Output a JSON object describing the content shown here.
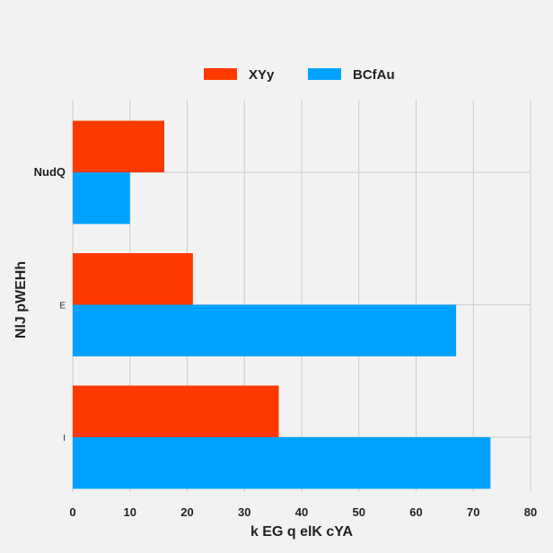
{
  "chart_data": {
    "type": "bar",
    "orientation": "horizontal",
    "title": "",
    "xlabel": "k EG q elK cYA",
    "ylabel": "NlJ pWEHh",
    "xlim": [
      0,
      80
    ],
    "xticks": [
      0,
      10,
      20,
      30,
      40,
      50,
      60,
      70,
      80
    ],
    "categories": [
      "NudQ",
      "E",
      "I"
    ],
    "series": [
      {
        "name": "XYy",
        "color": "#ff3a00",
        "values": [
          16,
          21,
          36
        ]
      },
      {
        "name": "BCfAu",
        "color": "#00a2ff",
        "values": [
          10,
          67,
          73
        ]
      }
    ],
    "grid": true,
    "legend_position": "top-center",
    "background": "#f2f2f2",
    "grid_color": "#cbcbcb"
  }
}
